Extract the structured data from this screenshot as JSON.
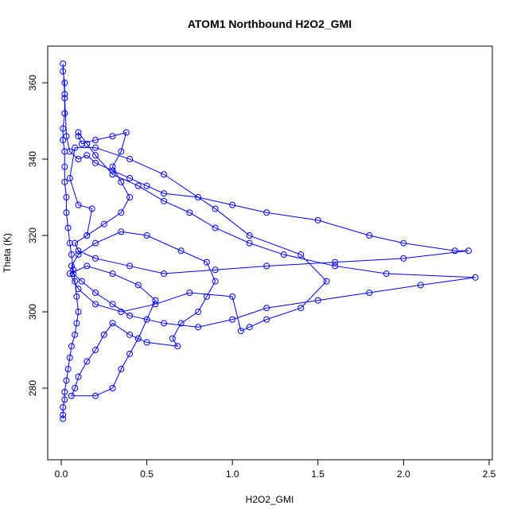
{
  "chart_data": {
    "type": "line",
    "title": "ATOM1 Northbound H2O2_GMI",
    "x_label": "H2O2_GMI",
    "y_label": "Theta (K)",
    "series": [
      {
        "color": "#0000ff",
        "x": [
          0.01,
          0.01,
          0.01,
          0.02,
          0.02,
          0.03,
          0.04,
          0.05,
          0.06,
          0.08,
          0.09,
          0.1,
          0.09,
          0.08,
          0.07,
          0.06,
          0.05,
          0.04,
          0.03,
          0.03,
          0.02,
          0.02,
          0.02,
          0.01,
          0.01,
          0.02,
          0.02,
          0.02,
          0.01,
          0.01,
          0.02,
          0.03,
          0.05,
          0.1,
          0.15,
          0.2,
          0.3,
          0.4,
          0.5,
          0.6,
          0.8,
          1.0,
          1.2,
          1.5,
          1.8,
          2.0,
          2.3,
          2.38,
          2.0,
          1.6,
          1.2,
          0.9,
          0.6,
          0.4,
          0.2,
          0.1,
          0.08,
          0.15,
          0.25,
          0.35,
          0.4,
          0.35,
          0.3,
          0.35,
          0.38,
          0.3,
          0.2,
          0.12,
          0.1,
          0.1,
          0.15,
          0.2,
          0.3,
          0.45,
          0.6,
          0.75,
          0.9,
          1.1,
          1.3,
          1.6,
          1.9,
          2.42,
          2.1,
          1.8,
          1.5,
          1.2,
          1.0,
          0.8,
          0.6,
          0.4,
          0.3,
          0.2,
          0.12,
          0.07,
          0.06,
          0.1,
          0.2,
          0.35,
          0.5,
          0.7,
          0.85,
          0.9,
          0.85,
          0.8,
          0.7,
          0.65,
          0.68,
          0.5,
          0.4,
          0.3,
          0.25,
          0.2,
          0.15,
          0.1,
          0.08,
          0.06,
          0.2,
          0.3,
          0.35,
          0.4,
          0.45,
          0.5,
          0.55,
          0.45,
          0.3,
          0.15,
          0.05,
          0.1,
          0.2,
          0.35,
          0.55,
          0.75,
          1.0,
          1.05,
          1.1,
          1.2,
          1.4,
          1.55,
          1.4,
          1.1,
          0.9,
          0.6,
          0.4,
          0.2,
          0.08,
          0.05,
          0.1,
          0.18,
          0.15
        ],
        "values": [
          272,
          273,
          275,
          277,
          279,
          282,
          285,
          288,
          291,
          294,
          297,
          300,
          304,
          308,
          311,
          315,
          318,
          322,
          326,
          330,
          334,
          338,
          342,
          345,
          348,
          352,
          356,
          360,
          363,
          365,
          357,
          346,
          342,
          340,
          341,
          339,
          337,
          335,
          333,
          331,
          330,
          328,
          326,
          324,
          320,
          318,
          316,
          316,
          314,
          313,
          312,
          311,
          310,
          312,
          314,
          316,
          318,
          320,
          323,
          326,
          330,
          334,
          338,
          342,
          347,
          346,
          345,
          344,
          346,
          347,
          344,
          341,
          336,
          333,
          329,
          326,
          322,
          318,
          315,
          312,
          310,
          309,
          307,
          305,
          303,
          301,
          298,
          296,
          297,
          299,
          302,
          305,
          308,
          310,
          312,
          315,
          318,
          321,
          320,
          316,
          313,
          308,
          304,
          300,
          297,
          293,
          291,
          292,
          294,
          297,
          294,
          290,
          287,
          283,
          280,
          278,
          278,
          280,
          285,
          289,
          293,
          298,
          303,
          307,
          310,
          312,
          310,
          306,
          302,
          300,
          302,
          305,
          304,
          295,
          296,
          298,
          301,
          308,
          315,
          320,
          327,
          336,
          340,
          343,
          343,
          335,
          328,
          327,
          320
        ]
      }
    ],
    "xlim": [
      -0.079,
      2.519
    ],
    "ylim": [
      261.25,
      369.6
    ],
    "xticks": [
      {
        "value": 0,
        "label": "0.0"
      },
      0.5,
      {
        "value": 1,
        "label": "1.0"
      },
      1.5,
      {
        "value": 2,
        "label": "2.0"
      },
      2.5
    ],
    "yticks": [
      280,
      300,
      320,
      340,
      360
    ]
  }
}
